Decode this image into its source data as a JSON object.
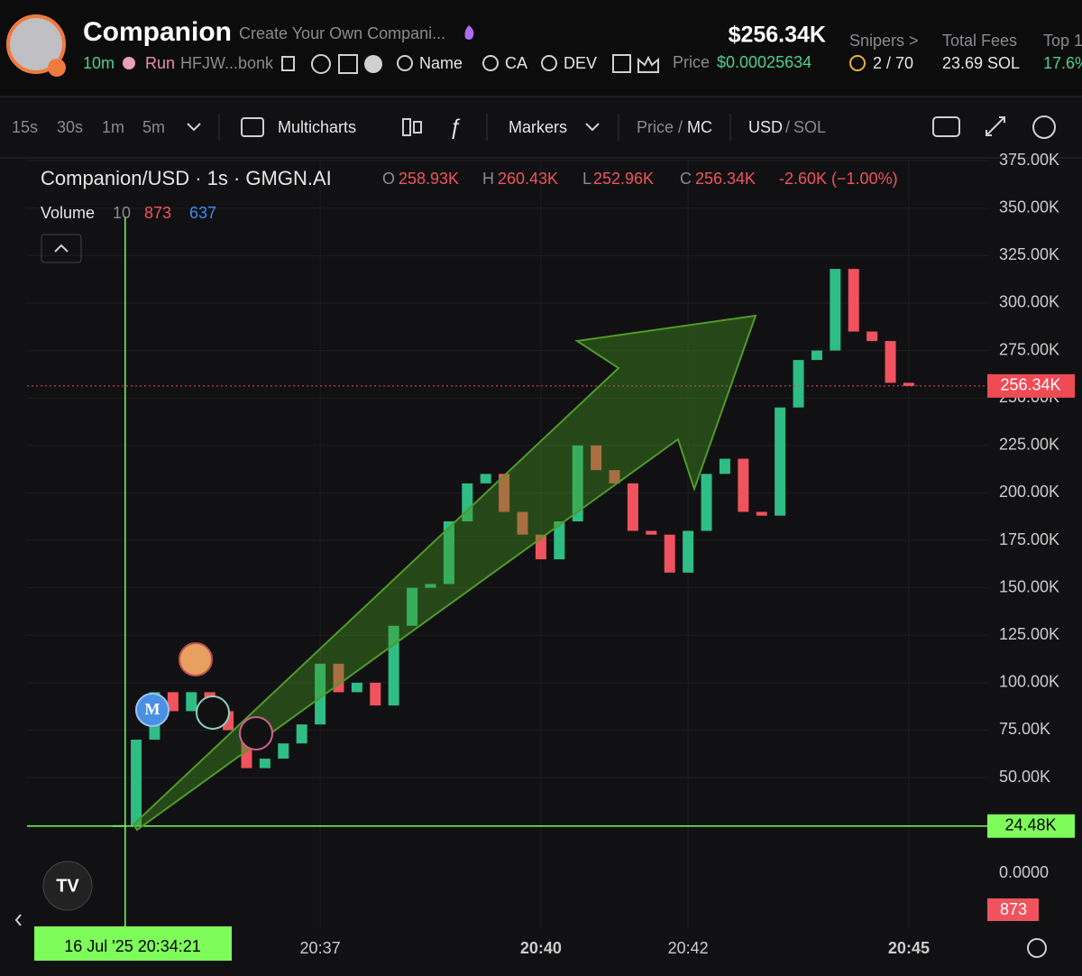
{
  "header": {
    "name": "Companion",
    "tagline": "Create Your Own Compani...",
    "age": "10m",
    "run": "Run",
    "address": "HFJW...bonk",
    "name_search": "Name",
    "ca": "CA",
    "dev": "DEV",
    "market_cap": "$256.34K",
    "price_label": "Price",
    "price": "$0.00025634",
    "snipers_label": "Snipers >",
    "snipers": "2 / 70",
    "fees_label": "Total Fees",
    "fees": "23.69 SOL",
    "top_label": "Top 1",
    "top": "17.6%"
  },
  "toolbar": {
    "intervals": [
      "15s",
      "30s",
      "1m",
      "5m"
    ],
    "multicharts": "Multicharts",
    "markers": "Markers",
    "price": "Price",
    "sep": "/",
    "mc": "MC",
    "usd": "USD",
    "sol": "SOL"
  },
  "legend": {
    "symbol": "Companion/USD · 1s · GMGN.AI",
    "o_label": "O",
    "o": "258.93K",
    "h_label": "H",
    "h": "260.43K",
    "l_label": "L",
    "l": "252.96K",
    "c_label": "C",
    "c": "256.34K",
    "change": "-2.60K (−1.00%)",
    "volume_label": "Volume",
    "volume_period": "10",
    "volume_sell": "873",
    "volume_buy": "637",
    "volume_axis": "0.0000",
    "volume_last": "873"
  },
  "chart_data": {
    "type": "candlestick",
    "up_color": "#2ebd85",
    "down_color": "#f0535d",
    "x": [
      "20:34:15",
      "20:34:30",
      "20:34:45",
      "20:35:00",
      "20:35:15",
      "20:35:30",
      "20:35:45",
      "20:36:00",
      "20:36:15",
      "20:36:30",
      "20:36:45",
      "20:37:00",
      "20:37:15",
      "20:37:30",
      "20:37:45",
      "20:38:00",
      "20:38:15",
      "20:38:30",
      "20:38:45",
      "20:39:00",
      "20:39:15",
      "20:39:30",
      "20:39:45",
      "20:40:00",
      "20:40:15",
      "20:40:30",
      "20:40:45",
      "20:41:00",
      "20:41:15",
      "20:41:30",
      "20:41:45",
      "20:42:00",
      "20:42:15",
      "20:42:30",
      "20:42:45",
      "20:43:00",
      "20:43:15",
      "20:43:30",
      "20:43:45",
      "20:44:00",
      "20:44:15",
      "20:44:30",
      "20:44:45",
      "20:45:00"
    ],
    "values": [
      24480,
      70000,
      95000,
      85000,
      95000,
      85000,
      75000,
      55000,
      60000,
      68000,
      78000,
      110000,
      95000,
      100000,
      88000,
      130000,
      150000,
      152000,
      185000,
      205000,
      210000,
      190000,
      178000,
      165000,
      185000,
      225000,
      212000,
      205000,
      180000,
      178000,
      158000,
      180000,
      210000,
      218000,
      190000,
      188000,
      245000,
      270000,
      275000,
      318000,
      285000,
      280000,
      258000,
      256340
    ],
    "xlim": [
      "20:33:01",
      "20:46:04"
    ],
    "xticks": [
      {
        "value": "20:37:00",
        "label": "20:37"
      },
      {
        "value": "20:40:00",
        "label": "20:40"
      },
      {
        "value": "20:42:00",
        "label": "20:42"
      },
      {
        "value": "20:45:00",
        "label": "20:45"
      }
    ],
    "ylim": [
      -29800,
      376500
    ],
    "yticks": [
      {
        "value": 50000,
        "label": "50.00K"
      },
      {
        "value": 75000,
        "label": "75.00K"
      },
      {
        "value": 100000,
        "label": "100.00K"
      },
      {
        "value": 125000,
        "label": "125.00K"
      },
      {
        "value": 150000,
        "label": "150.00K"
      },
      {
        "value": 175000,
        "label": "175.00K"
      },
      {
        "value": 200000,
        "label": "200.00K"
      },
      {
        "value": 225000,
        "label": "225.00K"
      },
      {
        "value": 250000,
        "label": "250.00K"
      },
      {
        "value": 275000,
        "label": "275.00K"
      },
      {
        "value": 300000,
        "label": "300.00K"
      },
      {
        "value": 325000,
        "label": "325.00K"
      },
      {
        "value": 350000,
        "label": "350.00K"
      },
      {
        "value": 375000,
        "label": "375.00K"
      }
    ],
    "grid": true,
    "price_lines": [
      {
        "value": 256340,
        "label": "256.34K",
        "color": "#f04a55"
      },
      {
        "value": 24480,
        "label": "24.48K",
        "color": "#7dfc5a"
      }
    ],
    "crosshair": {
      "x": "20:34:21",
      "label": "16 Jul '25   20:34:21"
    }
  }
}
